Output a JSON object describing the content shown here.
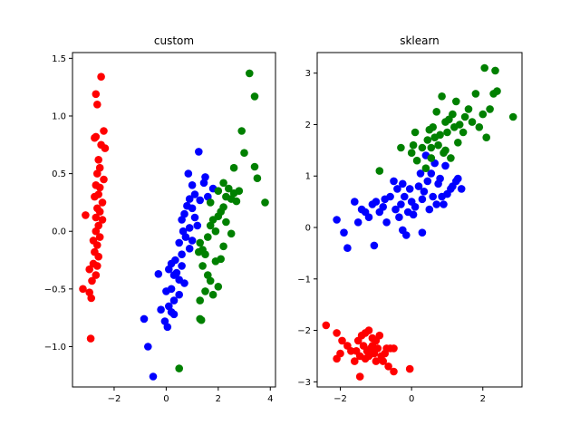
{
  "chart_data": [
    {
      "type": "scatter",
      "title": "custom",
      "xlim": [
        -3.6,
        4.2
      ],
      "ylim": [
        -1.35,
        1.55
      ],
      "xticks": [
        -2,
        0,
        2,
        4
      ],
      "yticks": [
        -1.0,
        -0.5,
        0.0,
        0.5,
        1.0,
        1.5
      ],
      "xticklabels": [
        "−2",
        "0",
        "2",
        "4"
      ],
      "yticklabels": [
        "−1.0",
        "−0.5",
        "0.0",
        "0.5",
        "1.0",
        "1.5"
      ],
      "series": [
        {
          "color": "#ff0000",
          "points": [
            [
              -2.5,
              1.34
            ],
            [
              -2.7,
              1.19
            ],
            [
              -2.65,
              1.1
            ],
            [
              -2.4,
              0.87
            ],
            [
              -2.7,
              0.82
            ],
            [
              -2.75,
              0.81
            ],
            [
              -2.5,
              0.75
            ],
            [
              -2.35,
              0.72
            ],
            [
              -2.6,
              0.62
            ],
            [
              -2.55,
              0.55
            ],
            [
              -2.65,
              0.5
            ],
            [
              -2.4,
              0.45
            ],
            [
              -2.7,
              0.4
            ],
            [
              -2.55,
              0.38
            ],
            [
              -2.6,
              0.32
            ],
            [
              -2.75,
              0.3
            ],
            [
              -2.45,
              0.25
            ],
            [
              -2.65,
              0.2
            ],
            [
              -2.55,
              0.17
            ],
            [
              -2.7,
              0.12
            ],
            [
              -3.1,
              0.14
            ],
            [
              -2.45,
              0.1
            ],
            [
              -2.6,
              0.05
            ],
            [
              -2.7,
              0.0
            ],
            [
              -2.55,
              -0.05
            ],
            [
              -2.8,
              -0.08
            ],
            [
              -2.65,
              -0.12
            ],
            [
              -2.75,
              -0.18
            ],
            [
              -2.6,
              -0.22
            ],
            [
              -2.8,
              -0.28
            ],
            [
              -2.65,
              -0.3
            ],
            [
              -2.95,
              -0.33
            ],
            [
              -2.7,
              -0.38
            ],
            [
              -2.85,
              -0.43
            ],
            [
              -3.2,
              -0.5
            ],
            [
              -2.95,
              -0.53
            ],
            [
              -2.88,
              -0.58
            ],
            [
              -2.9,
              -0.93
            ]
          ]
        },
        {
          "color": "#0000ff",
          "points": [
            [
              1.25,
              0.69
            ],
            [
              0.85,
              0.5
            ],
            [
              1.5,
              0.47
            ],
            [
              1.45,
              0.42
            ],
            [
              1.0,
              0.4
            ],
            [
              1.8,
              0.37
            ],
            [
              1.1,
              0.32
            ],
            [
              1.6,
              0.3
            ],
            [
              0.9,
              0.28
            ],
            [
              1.3,
              0.27
            ],
            [
              0.8,
              0.22
            ],
            [
              1.0,
              0.2
            ],
            [
              0.7,
              0.15
            ],
            [
              1.1,
              0.12
            ],
            [
              0.6,
              0.1
            ],
            [
              1.2,
              0.05
            ],
            [
              0.9,
              0.03
            ],
            [
              0.65,
              0.0
            ],
            [
              0.75,
              -0.05
            ],
            [
              1.0,
              -0.08
            ],
            [
              0.5,
              -0.1
            ],
            [
              0.9,
              -0.15
            ],
            [
              0.6,
              -0.2
            ],
            [
              0.35,
              -0.25
            ],
            [
              0.2,
              -0.28
            ],
            [
              0.6,
              -0.3
            ],
            [
              0.1,
              -0.33
            ],
            [
              0.4,
              -0.36
            ],
            [
              0.3,
              -0.38
            ],
            [
              0.5,
              -0.42
            ],
            [
              -0.3,
              -0.37
            ],
            [
              0.7,
              -0.45
            ],
            [
              0.2,
              -0.5
            ],
            [
              0.0,
              -0.52
            ],
            [
              0.5,
              -0.55
            ],
            [
              0.3,
              -0.6
            ],
            [
              0.1,
              -0.65
            ],
            [
              -0.2,
              -0.68
            ],
            [
              0.2,
              -0.7
            ],
            [
              0.3,
              -0.72
            ],
            [
              -0.85,
              -0.76
            ],
            [
              -0.05,
              -0.78
            ],
            [
              0.05,
              -0.83
            ],
            [
              -0.7,
              -1.0
            ],
            [
              -0.5,
              -1.26
            ]
          ]
        },
        {
          "color": "#008000",
          "points": [
            [
              3.2,
              1.37
            ],
            [
              3.4,
              1.17
            ],
            [
              2.9,
              0.87
            ],
            [
              3.0,
              0.68
            ],
            [
              3.4,
              0.56
            ],
            [
              2.6,
              0.55
            ],
            [
              3.5,
              0.46
            ],
            [
              2.2,
              0.42
            ],
            [
              2.4,
              0.37
            ],
            [
              2.0,
              0.35
            ],
            [
              2.6,
              0.33
            ],
            [
              2.8,
              0.35
            ],
            [
              2.3,
              0.3
            ],
            [
              2.5,
              0.28
            ],
            [
              2.7,
              0.26
            ],
            [
              1.7,
              0.25
            ],
            [
              3.8,
              0.25
            ],
            [
              2.2,
              0.21
            ],
            [
              2.1,
              0.17
            ],
            [
              2.0,
              0.13
            ],
            [
              1.8,
              0.1
            ],
            [
              2.3,
              0.08
            ],
            [
              1.7,
              0.05
            ],
            [
              1.9,
              0.0
            ],
            [
              1.6,
              -0.05
            ],
            [
              2.5,
              -0.02
            ],
            [
              1.3,
              -0.1
            ],
            [
              2.2,
              -0.13
            ],
            [
              1.4,
              -0.16
            ],
            [
              1.25,
              -0.18
            ],
            [
              1.5,
              -0.2
            ],
            [
              2.1,
              -0.24
            ],
            [
              1.9,
              -0.26
            ],
            [
              1.4,
              -0.3
            ],
            [
              1.6,
              -0.38
            ],
            [
              1.7,
              -0.43
            ],
            [
              2.0,
              -0.48
            ],
            [
              1.5,
              -0.52
            ],
            [
              1.8,
              -0.55
            ],
            [
              1.3,
              -0.6
            ],
            [
              1.35,
              -0.77
            ],
            [
              1.3,
              -0.76
            ],
            [
              0.5,
              -1.19
            ]
          ]
        }
      ]
    },
    {
      "type": "scatter",
      "title": "sklearn",
      "xlim": [
        -2.65,
        3.1
      ],
      "ylim": [
        -3.1,
        3.4
      ],
      "xticks": [
        -2,
        0,
        2
      ],
      "yticks": [
        -3,
        -2,
        -1,
        0,
        1,
        2,
        3
      ],
      "xticklabels": [
        "−2",
        "0",
        "2"
      ],
      "yticklabels": [
        "−3",
        "−2",
        "−1",
        "0",
        "1",
        "2",
        "3"
      ],
      "series": [
        {
          "color": "#ff0000",
          "points": [
            [
              -2.4,
              -1.9
            ],
            [
              -2.1,
              -2.05
            ],
            [
              -1.95,
              -2.2
            ],
            [
              -1.8,
              -2.3
            ],
            [
              -2.0,
              -2.45
            ],
            [
              -1.7,
              -2.4
            ],
            [
              -1.5,
              -2.2
            ],
            [
              -1.4,
              -2.1
            ],
            [
              -1.3,
              -2.05
            ],
            [
              -1.2,
              -2.0
            ],
            [
              -1.1,
              -2.15
            ],
            [
              -1.0,
              -2.2
            ],
            [
              -0.9,
              -2.1
            ],
            [
              -1.35,
              -2.3
            ],
            [
              -1.25,
              -2.4
            ],
            [
              -1.15,
              -2.35
            ],
            [
              -1.05,
              -2.45
            ],
            [
              -0.95,
              -2.35
            ],
            [
              -0.85,
              -2.5
            ],
            [
              -0.7,
              -2.35
            ],
            [
              -0.6,
              -2.35
            ],
            [
              -0.5,
              -2.35
            ],
            [
              -1.45,
              -2.5
            ],
            [
              -1.3,
              -2.55
            ],
            [
              -1.2,
              -2.5
            ],
            [
              -1.0,
              -2.6
            ],
            [
              -0.8,
              -2.6
            ],
            [
              -0.65,
              -2.7
            ],
            [
              -0.5,
              -2.8
            ],
            [
              -0.05,
              -2.75
            ],
            [
              -2.1,
              -2.55
            ],
            [
              -1.6,
              -2.6
            ],
            [
              -1.45,
              -2.9
            ],
            [
              -1.55,
              -2.4
            ],
            [
              -0.75,
              -2.45
            ],
            [
              -1.1,
              -2.3
            ]
          ]
        },
        {
          "color": "#0000ff",
          "points": [
            [
              -2.1,
              0.15
            ],
            [
              -1.9,
              -0.1
            ],
            [
              -1.8,
              -0.4
            ],
            [
              -1.6,
              0.5
            ],
            [
              -1.5,
              0.1
            ],
            [
              -1.4,
              0.35
            ],
            [
              -1.3,
              0.3
            ],
            [
              -1.2,
              0.2
            ],
            [
              -1.1,
              0.45
            ],
            [
              -1.05,
              -0.35
            ],
            [
              -1.0,
              0.5
            ],
            [
              -0.9,
              0.3
            ],
            [
              -0.8,
              0.4
            ],
            [
              -0.75,
              0.55
            ],
            [
              -0.7,
              0.1
            ],
            [
              -0.6,
              0.6
            ],
            [
              -0.5,
              0.9
            ],
            [
              -0.45,
              0.35
            ],
            [
              -0.4,
              0.75
            ],
            [
              -0.35,
              0.2
            ],
            [
              -0.3,
              0.45
            ],
            [
              -0.25,
              0.85
            ],
            [
              -0.2,
              0.6
            ],
            [
              -0.15,
              -0.15
            ],
            [
              -0.1,
              0.3
            ],
            [
              -0.05,
              0.75
            ],
            [
              0.0,
              0.5
            ],
            [
              0.05,
              0.25
            ],
            [
              0.1,
              0.4
            ],
            [
              0.2,
              0.8
            ],
            [
              0.25,
              1.05
            ],
            [
              0.3,
              0.55
            ],
            [
              0.35,
              0.7
            ],
            [
              0.4,
              1.4
            ],
            [
              0.45,
              0.9
            ],
            [
              0.5,
              0.35
            ],
            [
              0.55,
              1.05
            ],
            [
              0.6,
              0.6
            ],
            [
              0.65,
              1.25
            ],
            [
              0.7,
              0.45
            ],
            [
              0.75,
              0.85
            ],
            [
              0.8,
              0.95
            ],
            [
              0.85,
              0.6
            ],
            [
              0.9,
              0.45
            ],
            [
              0.95,
              1.2
            ],
            [
              1.0,
              0.65
            ],
            [
              1.1,
              0.75
            ],
            [
              1.15,
              0.8
            ],
            [
              1.25,
              0.9
            ],
            [
              1.3,
              0.95
            ],
            [
              1.4,
              0.75
            ],
            [
              -0.25,
              -0.05
            ],
            [
              0.3,
              -0.1
            ]
          ]
        },
        {
          "color": "#008000",
          "points": [
            [
              -0.9,
              1.1
            ],
            [
              -0.3,
              1.55
            ],
            [
              0.0,
              1.45
            ],
            [
              0.05,
              1.6
            ],
            [
              0.1,
              1.85
            ],
            [
              0.15,
              1.3
            ],
            [
              0.3,
              1.55
            ],
            [
              0.4,
              1.15
            ],
            [
              0.45,
              1.7
            ],
            [
              0.5,
              1.9
            ],
            [
              0.55,
              1.35
            ],
            [
              0.6,
              1.95
            ],
            [
              0.65,
              1.75
            ],
            [
              0.7,
              2.25
            ],
            [
              0.75,
              1.6
            ],
            [
              0.8,
              1.8
            ],
            [
              0.85,
              2.55
            ],
            [
              0.9,
              1.45
            ],
            [
              0.95,
              2.05
            ],
            [
              1.0,
              1.85
            ],
            [
              1.05,
              2.1
            ],
            [
              1.1,
              1.35
            ],
            [
              1.15,
              2.2
            ],
            [
              1.2,
              1.95
            ],
            [
              1.3,
              1.65
            ],
            [
              1.35,
              2.0
            ],
            [
              1.45,
              1.85
            ],
            [
              1.5,
              2.15
            ],
            [
              1.6,
              2.3
            ],
            [
              1.7,
              2.05
            ],
            [
              1.8,
              2.6
            ],
            [
              1.9,
              1.95
            ],
            [
              2.0,
              2.2
            ],
            [
              2.05,
              3.1
            ],
            [
              2.1,
              1.75
            ],
            [
              2.2,
              2.3
            ],
            [
              2.3,
              2.6
            ],
            [
              2.35,
              3.05
            ],
            [
              2.4,
              2.65
            ],
            [
              2.85,
              2.15
            ],
            [
              0.95,
              1.5
            ],
            [
              1.25,
              2.45
            ],
            [
              0.55,
              1.55
            ]
          ]
        }
      ]
    }
  ]
}
